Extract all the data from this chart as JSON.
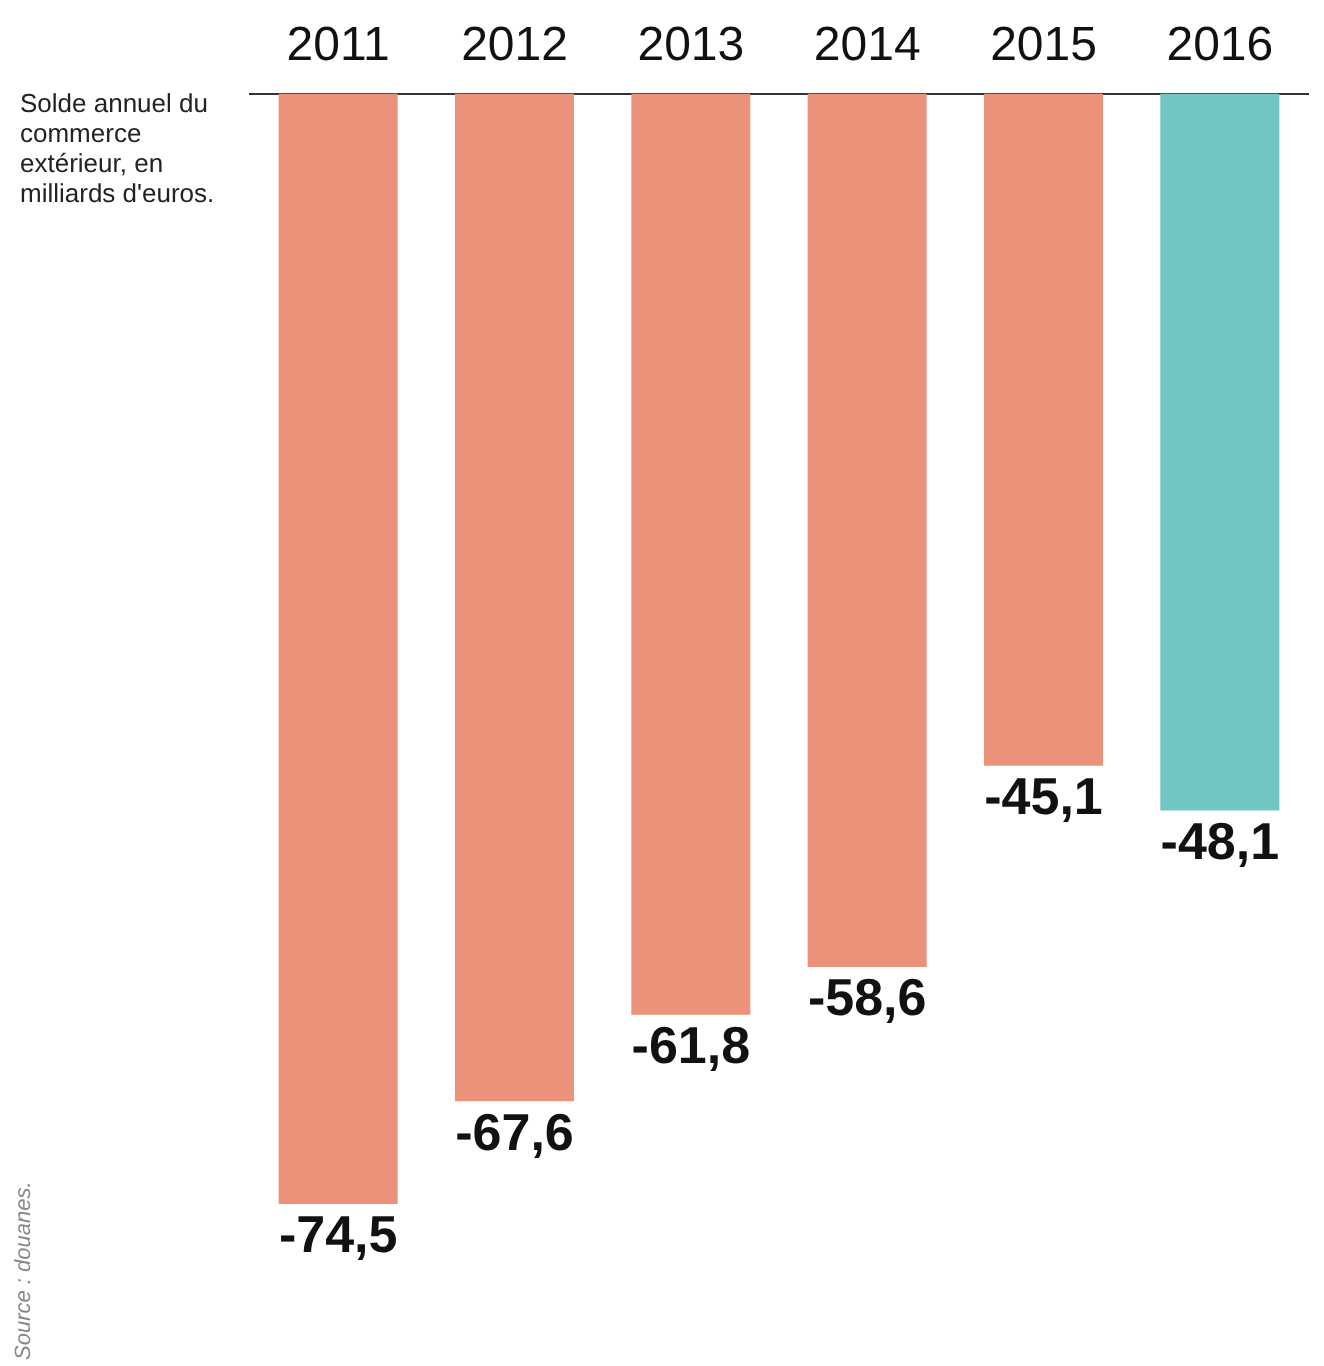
{
  "chart_data": {
    "type": "bar",
    "subtitle": "Solde annuel du commerce extérieur, en milliards d'euros.",
    "categories": [
      "2011",
      "2012",
      "2013",
      "2014",
      "2015",
      "2016"
    ],
    "values": [
      -74.5,
      -67.6,
      -61.8,
      -58.6,
      -45.1,
      -48.1
    ],
    "colors": [
      "#ec927a",
      "#ec927a",
      "#ec927a",
      "#ec927a",
      "#ec927a",
      "#70c6c0"
    ],
    "value_labels": [
      "-74,5",
      "-67,6",
      "-61,8",
      "-58,6",
      "-45,1",
      "-48,1"
    ],
    "grid": false,
    "legend": false,
    "annotations": [
      "Source : douanes."
    ]
  }
}
